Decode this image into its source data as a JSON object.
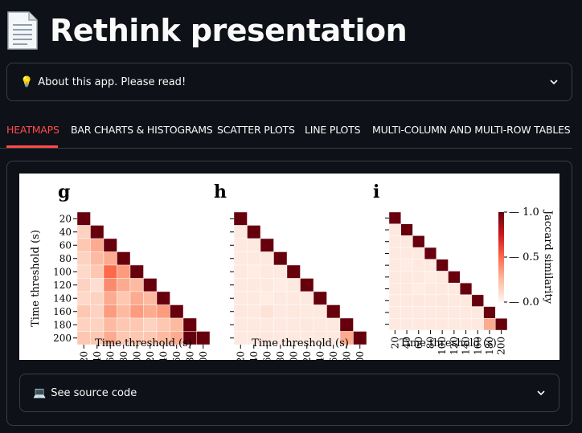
{
  "page": {
    "title": "Rethink presentation",
    "title_icon": "page-facing-up-icon"
  },
  "about": {
    "label": "About this app. Please read!",
    "icon": "💡"
  },
  "tabs": [
    {
      "label": "HEATMAPS",
      "active": true
    },
    {
      "label": "BAR CHARTS & HISTOGRAMS",
      "active": false
    },
    {
      "label": "SCATTER PLOTS",
      "active": false
    },
    {
      "label": "LINE PLOTS",
      "active": false
    },
    {
      "label": "MULTI-COLUMN AND MULTI-ROW TABLES",
      "active": false
    }
  ],
  "source": {
    "label": "See source code",
    "icon": "💻"
  },
  "colors": {
    "accent": "#ff4b4b",
    "background": "#0e1117",
    "border": "#3a3d45",
    "heat_max": "#67000d"
  },
  "chart_data": [
    {
      "type": "heatmap",
      "panel_label": "g",
      "categories": [
        "20",
        "40",
        "60",
        "80",
        "100",
        "120",
        "140",
        "160",
        "180",
        "200"
      ],
      "xlabel": "Time threshold (s)",
      "ylabel": "Time threshold (s)",
      "values": [
        [
          1.0
        ],
        [
          0.15,
          1.0
        ],
        [
          0.2,
          0.3,
          1.0
        ],
        [
          0.15,
          0.25,
          0.3,
          1.0
        ],
        [
          0.12,
          0.2,
          0.5,
          0.35,
          1.0
        ],
        [
          0.15,
          0.1,
          0.4,
          0.3,
          0.25,
          1.0
        ],
        [
          0.12,
          0.15,
          0.3,
          0.2,
          0.3,
          0.25,
          1.0
        ],
        [
          0.2,
          0.15,
          0.35,
          0.25,
          0.35,
          0.3,
          0.35,
          1.0
        ],
        [
          0.15,
          0.15,
          0.25,
          0.2,
          0.2,
          0.15,
          0.2,
          0.25,
          1.0
        ],
        [
          0.2,
          0.2,
          0.3,
          0.2,
          0.2,
          0.2,
          0.25,
          0.3,
          1.0,
          1.0
        ]
      ]
    },
    {
      "type": "heatmap",
      "panel_label": "h",
      "categories": [
        "20",
        "40",
        "60",
        "80",
        "100",
        "120",
        "140",
        "160",
        "180",
        "200"
      ],
      "xlabel": "Time threshold (s)",
      "ylabel": "",
      "values": [
        [
          1.0
        ],
        [
          0.05,
          1.0
        ],
        [
          0.05,
          0.05,
          1.0
        ],
        [
          0.05,
          0.05,
          0.05,
          1.0
        ],
        [
          0.05,
          0.04,
          0.05,
          0.05,
          1.0
        ],
        [
          0.05,
          0.05,
          0.05,
          0.04,
          0.05,
          1.0
        ],
        [
          0.05,
          0.05,
          0.04,
          0.05,
          0.05,
          0.05,
          1.0
        ],
        [
          0.06,
          0.05,
          0.08,
          0.05,
          0.06,
          0.05,
          0.05,
          1.0
        ],
        [
          0.05,
          0.05,
          0.05,
          0.05,
          0.05,
          0.06,
          0.05,
          0.05,
          1.0
        ],
        [
          0.05,
          0.05,
          0.06,
          0.05,
          0.05,
          0.05,
          0.06,
          0.05,
          0.3,
          1.0
        ]
      ]
    },
    {
      "type": "heatmap",
      "panel_label": "i",
      "categories": [
        "20",
        "40",
        "60",
        "80",
        "100",
        "120",
        "140",
        "160",
        "180",
        "200"
      ],
      "xlabel": "Time threshold (s)",
      "ylabel": "",
      "colorbar_label": "Jaccard similarity",
      "colorbar_ticks": [
        "1.0",
        "0.5",
        "0.0"
      ],
      "values": [
        [
          1.0
        ],
        [
          0.05,
          1.0
        ],
        [
          0.05,
          0.05,
          1.0
        ],
        [
          0.05,
          0.05,
          0.05,
          1.0
        ],
        [
          0.05,
          0.04,
          0.05,
          0.05,
          1.0
        ],
        [
          0.05,
          0.05,
          0.05,
          0.04,
          0.05,
          1.0
        ],
        [
          0.05,
          0.05,
          0.04,
          0.05,
          0.05,
          0.05,
          1.0
        ],
        [
          0.05,
          0.05,
          0.06,
          0.05,
          0.06,
          0.05,
          0.05,
          1.0
        ],
        [
          0.05,
          0.05,
          0.05,
          0.05,
          0.05,
          0.05,
          0.05,
          0.05,
          1.0
        ],
        [
          0.05,
          0.05,
          0.05,
          0.05,
          0.05,
          0.05,
          0.05,
          0.05,
          0.3,
          1.0
        ]
      ]
    }
  ]
}
